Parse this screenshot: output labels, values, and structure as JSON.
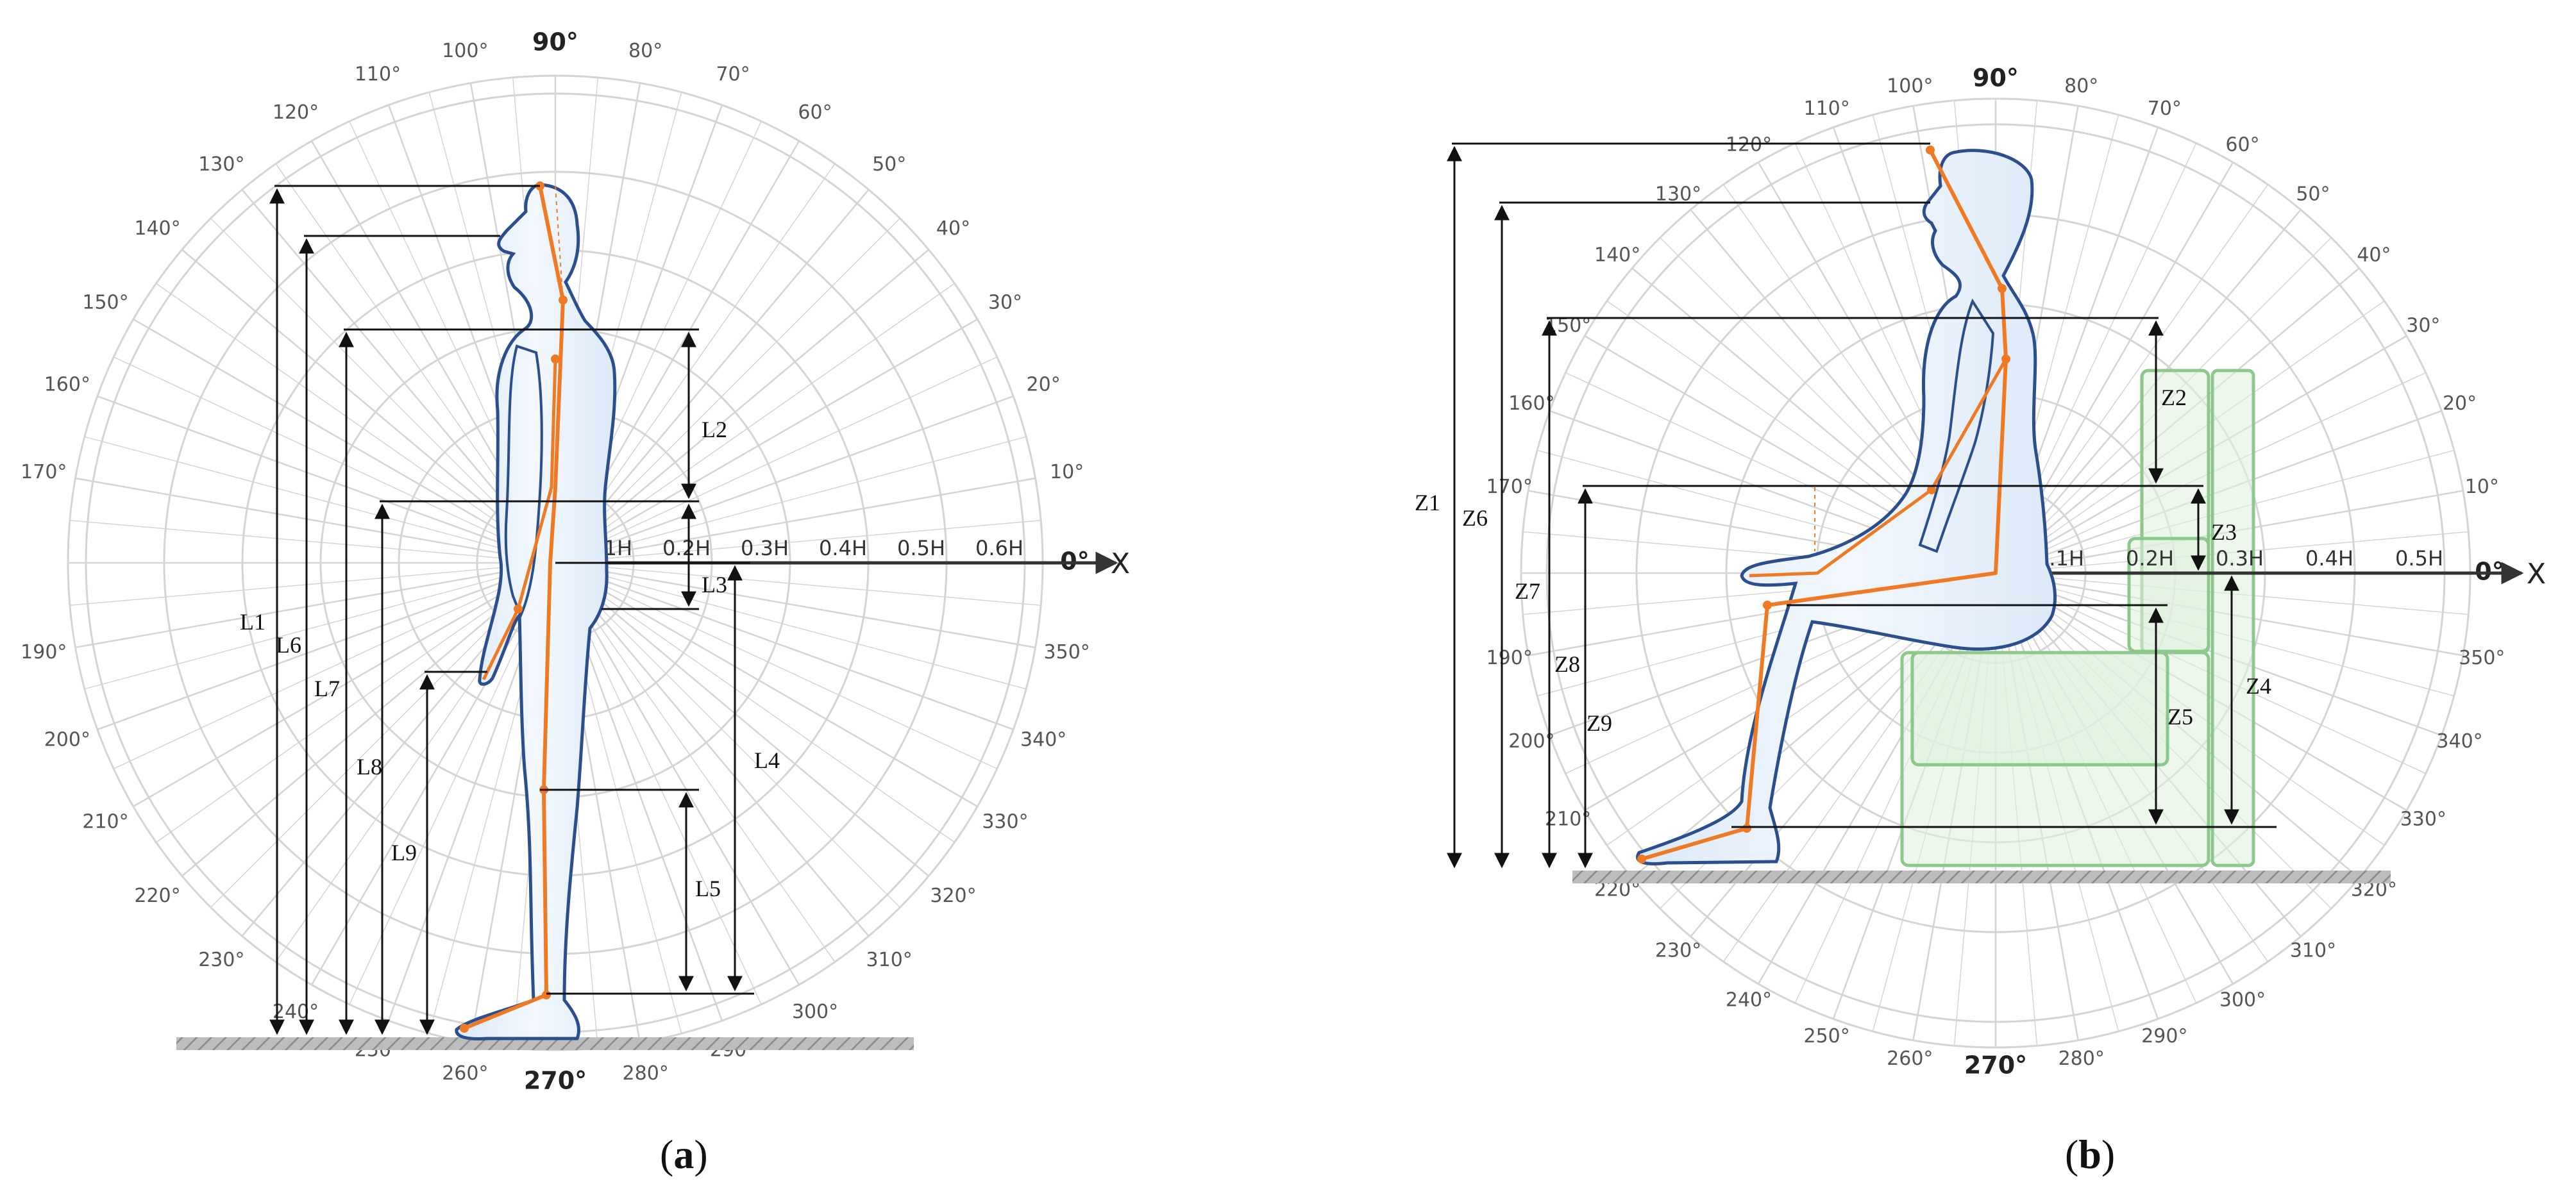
{
  "panels": [
    {
      "id": "a",
      "caption_open": "(",
      "caption_letter": "a",
      "caption_close": ")",
      "axis_label": "X",
      "ring_labels": [
        "0.1H",
        "0.2H",
        "0.3H",
        "0.4H",
        "0.5H",
        "0.6H"
      ],
      "angle_labels": [
        "0°",
        "10°",
        "20°",
        "30°",
        "40°",
        "50°",
        "60°",
        "70°",
        "80°",
        "90°",
        "100°",
        "110°",
        "120°",
        "130°",
        "140°",
        "150°",
        "160°",
        "170°",
        "190°",
        "200°",
        "210°",
        "220°",
        "230°",
        "240°",
        "250°",
        "260°",
        "270°",
        "280°",
        "290°",
        "300°",
        "310°",
        "320°",
        "330°",
        "340°",
        "350°"
      ],
      "dimension_labels": [
        "L1",
        "L2",
        "L3",
        "L4",
        "L5",
        "L6",
        "L7",
        "L8",
        "L9"
      ]
    },
    {
      "id": "b",
      "caption_open": "(",
      "caption_letter": "b",
      "caption_close": ")",
      "axis_label": "X",
      "ring_labels": [
        "0.1H",
        "0.2H",
        "0.3H",
        "0.4H",
        "0.5H"
      ],
      "angle_labels": [
        "0°",
        "10°",
        "20°",
        "30°",
        "40°",
        "50°",
        "60°",
        "70°",
        "80°",
        "90°",
        "100°",
        "110°",
        "120°",
        "130°",
        "140°",
        "150°",
        "160°",
        "170°",
        "190°",
        "200°",
        "210°",
        "220°",
        "230°",
        "240°",
        "250°",
        "260°",
        "270°",
        "280°",
        "290°",
        "300°",
        "310°",
        "320°",
        "330°",
        "340°",
        "350°"
      ],
      "dimension_labels": [
        "Z1",
        "Z2",
        "Z3",
        "Z4",
        "Z5",
        "Z6",
        "Z7",
        "Z8",
        "Z9"
      ]
    }
  ],
  "colors": {
    "outline": "#2b4f8e",
    "skeleton": "#f07a24",
    "seat": "#8cc78c",
    "grid": "#d4d4d4",
    "body_fill": "#e8f1fb"
  }
}
